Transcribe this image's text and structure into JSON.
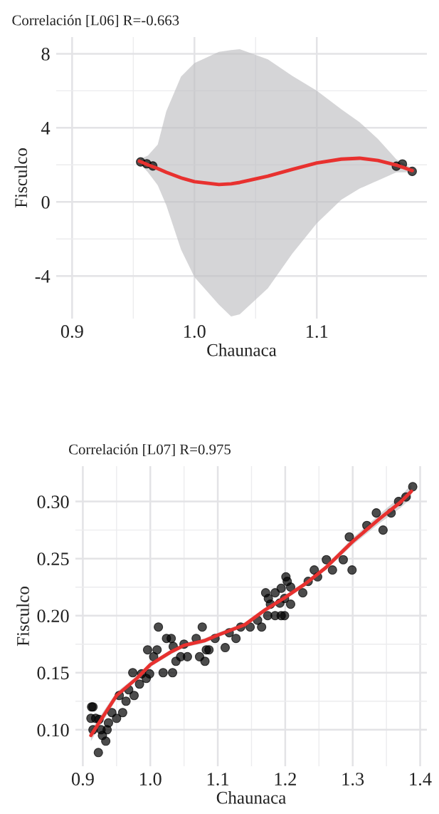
{
  "chart_data": [
    {
      "type": "scatter",
      "title": "Correlación [L06] R=-0.663",
      "xlabel": "Chaunaca",
      "ylabel": "Fisculco",
      "xlim": [
        0.887,
        1.19
      ],
      "ylim": [
        -6.3,
        8.9
      ],
      "xticks": [
        {
          "value": 0.9,
          "label": "0.9"
        },
        {
          "value": 1.0,
          "label": "1.0"
        },
        {
          "value": 1.1,
          "label": "1.1"
        }
      ],
      "yticks": [
        -4,
        0,
        4,
        8
      ],
      "grid": true,
      "legend": false,
      "series": [
        {
          "marker": "circle",
          "color": "#000000",
          "x": [
            0.956,
            0.961,
            0.966,
            1.165,
            1.17,
            1.178
          ],
          "values": [
            2.16,
            2.06,
            1.94,
            1.93,
            2.05,
            1.65
          ]
        },
        {
          "type": "line",
          "color": "#e8312f",
          "x": [
            0.955,
            0.962,
            0.97,
            0.977,
            0.989,
            1.0,
            1.02,
            1.03,
            1.037,
            1.06,
            1.08,
            1.1,
            1.12,
            1.135,
            1.15,
            1.165,
            1.178
          ],
          "values": [
            2.2,
            2.0,
            1.8,
            1.6,
            1.3,
            1.09,
            0.94,
            0.98,
            1.05,
            1.39,
            1.76,
            2.1,
            2.31,
            2.36,
            2.24,
            1.99,
            1.69
          ],
          "lower": [
            2.1,
            1.6,
            0.9,
            -0.18,
            -2.57,
            -4.06,
            -5.55,
            -6.18,
            -6.07,
            -4.66,
            -2.79,
            -1.15,
            0.12,
            0.72,
            1.16,
            1.6,
            1.6
          ],
          "upper": [
            2.3,
            2.5,
            3.1,
            4.9,
            6.76,
            7.5,
            8.1,
            8.2,
            8.25,
            7.7,
            6.8,
            6.0,
            5.0,
            4.3,
            3.4,
            2.3,
            1.8
          ]
        }
      ]
    },
    {
      "type": "scatter",
      "title": "Correlación [L07] R=0.975",
      "xlabel": "Chaunaca",
      "ylabel": "Fisculco",
      "xlim": [
        0.889,
        1.41
      ],
      "ylim": [
        0.068,
        0.331
      ],
      "xticks": [
        {
          "value": 0.9,
          "label": "0.9"
        },
        {
          "value": 1.0,
          "label": "1.0"
        },
        {
          "value": 1.1,
          "label": "1.1"
        },
        {
          "value": 1.2,
          "label": "1.2"
        },
        {
          "value": 1.3,
          "label": "1.3"
        },
        {
          "value": 1.4,
          "label": "1.4"
        }
      ],
      "yticks": [
        {
          "value": 0.1,
          "label": "0.10"
        },
        {
          "value": 0.15,
          "label": "0.15"
        },
        {
          "value": 0.2,
          "label": "0.20"
        },
        {
          "value": 0.25,
          "label": "0.25"
        },
        {
          "value": 0.3,
          "label": "0.30"
        }
      ],
      "grid": true,
      "legend": false,
      "series": [
        {
          "marker": "circle",
          "color": "#000000",
          "x": [
            0.913,
            0.915,
            0.912,
            0.919,
            0.924,
            0.915,
            0.927,
            0.936,
            0.923,
            0.934,
            0.929,
            0.938,
            0.943,
            0.95,
            0.959,
            0.954,
            0.964,
            0.968,
            0.976,
            0.974,
            0.984,
            0.994,
            0.987,
            0.999,
            0.996,
            1.01,
            1.005,
            1.012,
            1.019,
            1.033,
            1.024,
            1.031,
            1.034,
            1.038,
            1.045,
            1.055,
            1.05,
            1.068,
            1.077,
            1.073,
            1.081,
            1.083,
            1.087,
            1.096,
            1.111,
            1.117,
            1.127,
            1.134,
            1.148,
            1.159,
            1.165,
            1.171,
            1.175,
            1.178,
            1.174,
            1.185,
            1.194,
            1.199,
            1.185,
            1.194,
            1.201,
            1.203,
            1.208,
            1.208,
            1.226,
            1.192,
            1.199,
            1.234,
            1.243,
            1.248,
            1.261,
            1.27,
            1.286,
            1.299,
            1.295,
            1.321,
            1.335,
            1.345,
            1.357,
            1.368,
            1.379,
            1.389
          ],
          "values": [
            0.12,
            0.12,
            0.11,
            0.11,
            0.109,
            0.1,
            0.1,
            0.1,
            0.08,
            0.09,
            0.095,
            0.106,
            0.115,
            0.11,
            0.115,
            0.13,
            0.125,
            0.135,
            0.13,
            0.15,
            0.14,
            0.145,
            0.149,
            0.149,
            0.17,
            0.17,
            0.164,
            0.19,
            0.15,
            0.15,
            0.18,
            0.18,
            0.173,
            0.16,
            0.164,
            0.164,
            0.175,
            0.18,
            0.19,
            0.164,
            0.16,
            0.17,
            0.17,
            0.18,
            0.172,
            0.185,
            0.18,
            0.19,
            0.19,
            0.196,
            0.19,
            0.22,
            0.215,
            0.21,
            0.2,
            0.2,
            0.2,
            0.2,
            0.22,
            0.224,
            0.234,
            0.23,
            0.225,
            0.21,
            0.22,
            0.211,
            0.215,
            0.23,
            0.24,
            0.234,
            0.249,
            0.24,
            0.249,
            0.24,
            0.269,
            0.279,
            0.29,
            0.275,
            0.29,
            0.3,
            0.304,
            0.313
          ]
        },
        {
          "type": "line",
          "color": "#e8312f",
          "x": [
            0.912,
            0.95,
            0.98,
            1.0,
            1.03,
            1.05,
            1.08,
            1.1,
            1.14,
            1.17,
            1.2,
            1.23,
            1.26,
            1.3,
            1.34,
            1.37,
            1.387
          ],
          "values": [
            0.095,
            0.13,
            0.145,
            0.157,
            0.168,
            0.174,
            0.178,
            0.183,
            0.192,
            0.205,
            0.216,
            0.228,
            0.242,
            0.265,
            0.285,
            0.299,
            0.309
          ],
          "lower": [
            0.09,
            0.127,
            0.143,
            0.155,
            0.166,
            0.172,
            0.176,
            0.181,
            0.19,
            0.203,
            0.214,
            0.226,
            0.24,
            0.262,
            0.281,
            0.294,
            0.303
          ],
          "upper": [
            0.1,
            0.133,
            0.147,
            0.159,
            0.17,
            0.176,
            0.18,
            0.185,
            0.194,
            0.207,
            0.218,
            0.23,
            0.244,
            0.268,
            0.289,
            0.304,
            0.315
          ]
        }
      ]
    }
  ]
}
